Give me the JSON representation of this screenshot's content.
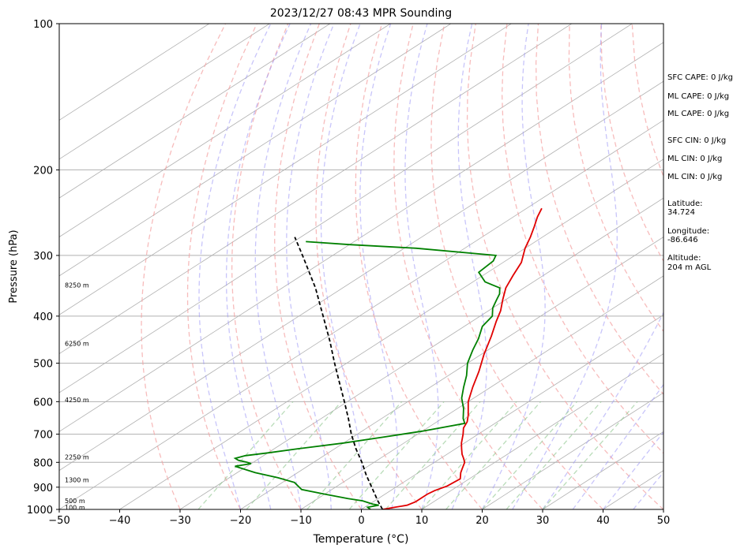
{
  "chart_data": {
    "type": "line",
    "title": "2023/12/27 08:43 MPR Sounding",
    "xlabel": "Temperature (°C)",
    "ylabel": "Pressure (hPa)",
    "xlim": [
      -50,
      50
    ],
    "ylim": [
      1000,
      100
    ],
    "yscale": "log",
    "skew": true,
    "x_ticks": [
      "−50",
      "−40",
      "−30",
      "−20",
      "−10",
      "0",
      "10",
      "20",
      "30",
      "40",
      "50"
    ],
    "y_ticks": [
      "100",
      "200",
      "300",
      "400",
      "500",
      "600",
      "700",
      "800",
      "900",
      "1000"
    ],
    "height_labels": [
      {
        "p": 990,
        "label": "100 m"
      },
      {
        "p": 960,
        "label": "500 m"
      },
      {
        "p": 870,
        "label": "1300 m"
      },
      {
        "p": 780,
        "label": "2250 m"
      },
      {
        "p": 595,
        "label": "4250 m"
      },
      {
        "p": 455,
        "label": "6250 m"
      },
      {
        "p": 345,
        "label": "8250 m"
      }
    ],
    "series": [
      {
        "color": "#e00000",
        "points": [
          [
            1000,
            3.5
          ],
          [
            990,
            5
          ],
          [
            980,
            6.5
          ],
          [
            965,
            7
          ],
          [
            945,
            7
          ],
          [
            930,
            7
          ],
          [
            915,
            7.3
          ],
          [
            895,
            8.2
          ],
          [
            865,
            8.5
          ],
          [
            840,
            7
          ],
          [
            820,
            6
          ],
          [
            800,
            5
          ],
          [
            785,
            3.8
          ],
          [
            770,
            2.5
          ],
          [
            750,
            1
          ],
          [
            730,
            -0.5
          ],
          [
            700,
            -2.5
          ],
          [
            680,
            -4
          ],
          [
            660,
            -5
          ],
          [
            640,
            -6.5
          ],
          [
            600,
            -10
          ],
          [
            560,
            -13
          ],
          [
            520,
            -16
          ],
          [
            480,
            -19.5
          ],
          [
            440,
            -23
          ],
          [
            410,
            -26
          ],
          [
            390,
            -28
          ],
          [
            370,
            -30.5
          ],
          [
            350,
            -33
          ],
          [
            330,
            -35
          ],
          [
            310,
            -37
          ],
          [
            290,
            -40
          ],
          [
            275,
            -42
          ],
          [
            262,
            -44
          ],
          [
            250,
            -46
          ],
          [
            240,
            -47.5
          ]
        ]
      },
      {
        "color": "#008000",
        "points": [
          [
            1000,
            1.5
          ],
          [
            990,
            0.5
          ],
          [
            980,
            1.8
          ],
          [
            975,
            0.5
          ],
          [
            960,
            -2
          ],
          [
            950,
            -5
          ],
          [
            930,
            -10
          ],
          [
            910,
            -15
          ],
          [
            880,
            -18
          ],
          [
            860,
            -22
          ],
          [
            840,
            -27
          ],
          [
            820,
            -31
          ],
          [
            815,
            -32
          ],
          [
            810,
            -31
          ],
          [
            805,
            -30
          ],
          [
            800,
            -31
          ],
          [
            792,
            -33
          ],
          [
            785,
            -34
          ],
          [
            775,
            -33
          ],
          [
            765,
            -30
          ],
          [
            750,
            -26
          ],
          [
            730,
            -20
          ],
          [
            710,
            -15
          ],
          [
            690,
            -10
          ],
          [
            665,
            -5
          ],
          [
            650,
            -6.5
          ],
          [
            620,
            -9
          ],
          [
            590,
            -12
          ],
          [
            560,
            -14.5
          ],
          [
            530,
            -17
          ],
          [
            500,
            -20
          ],
          [
            470,
            -22.5
          ],
          [
            445,
            -24.5
          ],
          [
            420,
            -27
          ],
          [
            400,
            -28
          ],
          [
            385,
            -30
          ],
          [
            370,
            -31.5
          ],
          [
            360,
            -32.5
          ],
          [
            350,
            -34
          ],
          [
            345,
            -36
          ],
          [
            340,
            -38
          ],
          [
            325,
            -41.5
          ],
          [
            308,
            -42
          ],
          [
            300,
            -43
          ],
          [
            290,
            -58
          ],
          [
            285,
            -70
          ],
          [
            281,
            -78
          ]
        ]
      },
      {
        "name": "parcel",
        "color": "#000000",
        "dashed": true,
        "points": [
          [
            1000,
            3.5
          ],
          [
            960,
            0.5
          ],
          [
            900,
            -4
          ],
          [
            850,
            -8
          ],
          [
            800,
            -12
          ],
          [
            750,
            -16.5
          ],
          [
            700,
            -21
          ],
          [
            650,
            -25.5
          ],
          [
            600,
            -30.5
          ],
          [
            550,
            -36
          ],
          [
            500,
            -42
          ],
          [
            450,
            -48.5
          ],
          [
            400,
            -56
          ],
          [
            350,
            -64.5
          ],
          [
            300,
            -75
          ],
          [
            275,
            -81
          ]
        ]
      }
    ]
  },
  "sidebar": {
    "sfc_cape": "SFC CAPE: 0 J/kg",
    "ml_cape_1": "ML CAPE: 0 J/kg",
    "ml_cape_2": "ML CAPE: 0 J/kg",
    "sfc_cin": "SFC CIN: 0 J/kg",
    "ml_cin_1": "ML CIN: 0 J/kg",
    "ml_cin_2": "ML CIN: 0 J/kg",
    "latitude_label": "Latitude:",
    "latitude_value": "34.724",
    "longitude_label": "Longitude:",
    "longitude_value": "-86.646",
    "altitude_label": "Altitude:",
    "altitude_value": "204 m AGL"
  }
}
